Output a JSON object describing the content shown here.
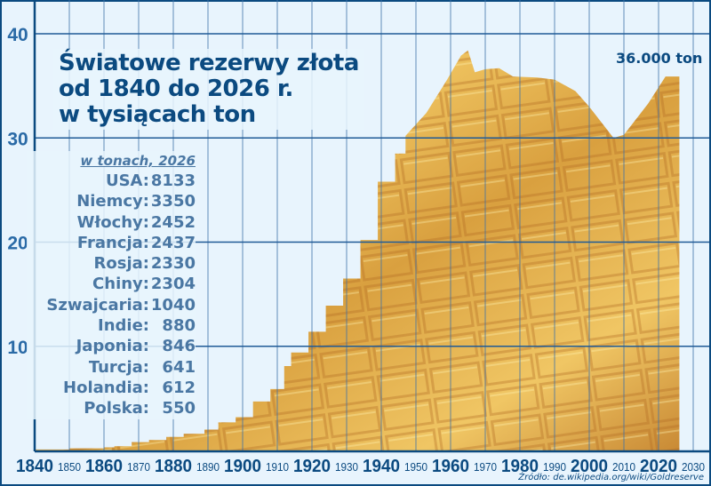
{
  "chart_data": {
    "type": "area",
    "title": "Światowe rezerwy złota",
    "title_lines": [
      "Światowe rezerwy złota",
      "od 1840 do 2026 r.",
      "w tysiącach ton"
    ],
    "xlim": [
      1840,
      2030
    ],
    "ylim": [
      0,
      40
    ],
    "x_ticks_major": [
      "1840",
      "1860",
      "1880",
      "1900",
      "1920",
      "1940",
      "1960",
      "1980",
      "2000",
      "2020"
    ],
    "x_ticks_minor": [
      "1850",
      "1870",
      "1890",
      "1910",
      "1930",
      "1950",
      "1970",
      "1990",
      "2010",
      "2030"
    ],
    "y_ticks": [
      "10",
      "20",
      "30",
      "40"
    ],
    "grid": true,
    "fill": "gold-bars image",
    "annotation": "36.000 ton",
    "points": [
      [
        1840,
        0.1
      ],
      [
        1850,
        0.2
      ],
      [
        1860,
        0.3
      ],
      [
        1863,
        0.4
      ],
      [
        1868,
        0.8
      ],
      [
        1873,
        1.0
      ],
      [
        1878,
        1.3
      ],
      [
        1883,
        1.6
      ],
      [
        1889,
        2.0
      ],
      [
        1893,
        2.7
      ],
      [
        1898,
        3.2
      ],
      [
        1903,
        4.7
      ],
      [
        1908,
        5.9
      ],
      [
        1912,
        8.1
      ],
      [
        1914,
        9.4
      ],
      [
        1919,
        11.4
      ],
      [
        1924,
        13.9
      ],
      [
        1929,
        16.5
      ],
      [
        1934,
        20.2
      ],
      [
        1939,
        25.8
      ],
      [
        1944,
        28.5
      ],
      [
        1947,
        30.2
      ],
      [
        1953,
        32.4
      ],
      [
        1959,
        35.6
      ],
      [
        1963,
        37.9
      ],
      [
        1965,
        38.4
      ],
      [
        1967,
        36.3
      ],
      [
        1970,
        36.6
      ],
      [
        1974,
        36.7
      ],
      [
        1978,
        35.9
      ],
      [
        1985,
        35.8
      ],
      [
        1990,
        35.6
      ],
      [
        1996,
        34.5
      ],
      [
        2000,
        33.0
      ],
      [
        2007,
        30.0
      ],
      [
        2010,
        30.3
      ],
      [
        2017,
        33.3
      ],
      [
        2022,
        35.9
      ],
      [
        2026,
        35.9
      ]
    ],
    "colors": {
      "axis": "#0b4a80",
      "grid": "#3f72a8",
      "background": "#e8f4fd",
      "fill": "#e0a83a"
    }
  },
  "legend_box": {
    "subtitle": "w tonach, 2026",
    "rows": [
      {
        "country": "USA:",
        "value": "8133"
      },
      {
        "country": "Niemcy:",
        "value": "3350"
      },
      {
        "country": "Włochy:",
        "value": "2452"
      },
      {
        "country": "Francja:",
        "value": "2437"
      },
      {
        "country": "Rosja:",
        "value": "2330"
      },
      {
        "country": "Chiny:",
        "value": "2304"
      },
      {
        "country": "Szwajcaria:",
        "value": "1040"
      },
      {
        "country": "Indie:",
        "value": "880"
      },
      {
        "country": "Japonia:",
        "value": "846"
      },
      {
        "country": "Turcja:",
        "value": "641"
      },
      {
        "country": "Holandia:",
        "value": "612"
      },
      {
        "country": "Polska:",
        "value": "550"
      }
    ]
  },
  "source": "Źródło: de.wikipedia.org/wiki/Goldreserve"
}
